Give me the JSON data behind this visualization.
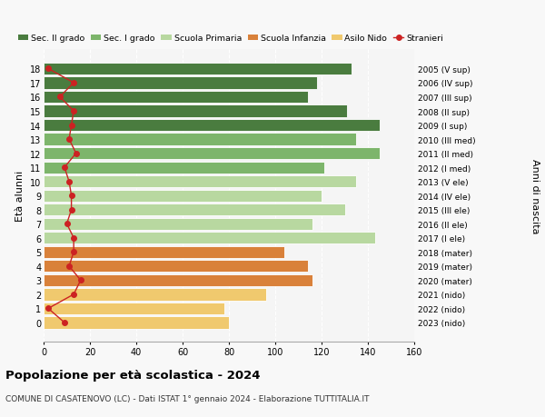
{
  "ages": [
    18,
    17,
    16,
    15,
    14,
    13,
    12,
    11,
    10,
    9,
    8,
    7,
    6,
    5,
    4,
    3,
    2,
    1,
    0
  ],
  "bar_values": [
    133,
    118,
    114,
    131,
    145,
    135,
    145,
    121,
    135,
    120,
    130,
    116,
    143,
    104,
    114,
    116,
    96,
    78,
    80
  ],
  "bar_colors": [
    "#4a7c3f",
    "#4a7c3f",
    "#4a7c3f",
    "#4a7c3f",
    "#4a7c3f",
    "#7db56b",
    "#7db56b",
    "#7db56b",
    "#b8d8a0",
    "#b8d8a0",
    "#b8d8a0",
    "#b8d8a0",
    "#b8d8a0",
    "#d9813a",
    "#d9813a",
    "#d9813a",
    "#f0c96e",
    "#f0c96e",
    "#f0c96e"
  ],
  "stranieri_values": [
    2,
    13,
    7,
    13,
    12,
    11,
    14,
    9,
    11,
    12,
    12,
    10,
    13,
    13,
    11,
    16,
    13,
    2,
    9
  ],
  "right_labels": [
    "2005 (V sup)",
    "2006 (IV sup)",
    "2007 (III sup)",
    "2008 (II sup)",
    "2009 (I sup)",
    "2010 (III med)",
    "2011 (II med)",
    "2012 (I med)",
    "2013 (V ele)",
    "2014 (IV ele)",
    "2015 (III ele)",
    "2016 (II ele)",
    "2017 (I ele)",
    "2018 (mater)",
    "2019 (mater)",
    "2020 (mater)",
    "2021 (nido)",
    "2022 (nido)",
    "2023 (nido)"
  ],
  "ylabel_left": "Età alunni",
  "ylabel_right": "Anni di nascita",
  "title": "Popolazione per età scolastica - 2024",
  "subtitle": "COMUNE DI CASATENOVO (LC) - Dati ISTAT 1° gennaio 2024 - Elaborazione TUTTITALIA.IT",
  "xlim": [
    0,
    160
  ],
  "xticks": [
    0,
    20,
    40,
    60,
    80,
    100,
    120,
    140,
    160
  ],
  "legend_labels": [
    "Sec. II grado",
    "Sec. I grado",
    "Scuola Primaria",
    "Scuola Infanzia",
    "Asilo Nido",
    "Stranieri"
  ],
  "legend_colors": [
    "#4a7c3f",
    "#7db56b",
    "#b8d8a0",
    "#d9813a",
    "#f0c96e",
    "#cc2222"
  ],
  "stranieri_color": "#cc2222",
  "bg_color": "#f5f5f5",
  "fig_bg_color": "#f8f8f8"
}
